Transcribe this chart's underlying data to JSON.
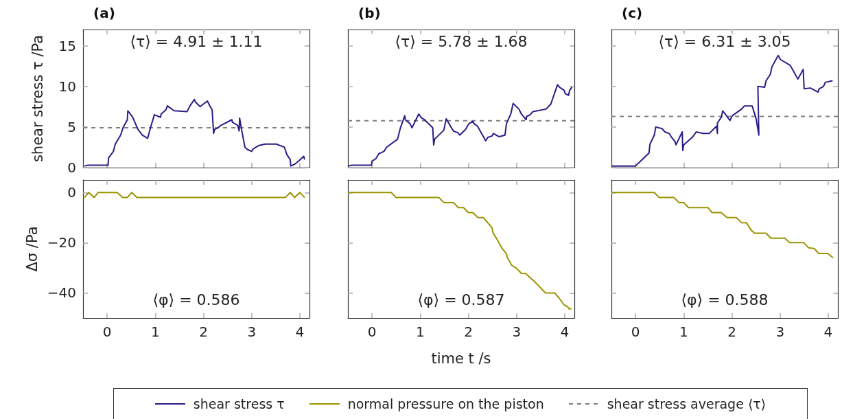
{
  "chart_data": [
    {
      "type": "line",
      "title": "(a)",
      "legend": "bottom",
      "ylabel": "shear stress τ /Pa",
      "xlim": [
        -0.5,
        4.2
      ],
      "ylim": [
        0,
        17
      ],
      "xticks": [
        0,
        1,
        2,
        3,
        4
      ],
      "yticks": [
        0,
        5,
        10,
        15
      ],
      "tick_labels": "y",
      "grid": false,
      "marker": "none",
      "line_style": "solid",
      "annotations": [
        "⟨τ⟩ = 4.91 ± 1.11"
      ],
      "series": [
        {
          "name": "shear stress τ",
          "color": "#2e1a87",
          "x": [
            -0.47,
            -0.4,
            -0.28,
            0.02,
            0.03,
            0.13,
            0.17,
            0.28,
            0.33,
            0.42,
            0.43,
            0.53,
            0.64,
            0.73,
            0.84,
            0.9,
            0.98,
            1.11,
            1.12,
            1.22,
            1.25,
            1.39,
            1.66,
            1.72,
            1.81,
            1.83,
            1.93,
            2.08,
            2.14,
            2.18,
            2.21,
            2.23,
            2.3,
            2.36,
            2.59,
            2.6,
            2.71,
            2.74,
            2.75,
            2.79,
            2.86,
            2.92,
            3.0,
            3.03,
            3.14,
            3.28,
            3.51,
            3.68,
            3.73,
            3.8,
            3.81,
            3.89,
            4.01,
            4.08,
            4.1
          ],
          "values": [
            0.2,
            0.3,
            0.3,
            0.3,
            1.2,
            2.0,
            2.9,
            4.0,
            4.9,
            5.9,
            7.0,
            6.2,
            4.7,
            4.0,
            3.6,
            4.9,
            6.5,
            6.2,
            6.6,
            7.1,
            7.6,
            7.0,
            6.9,
            7.6,
            8.4,
            8.1,
            7.5,
            8.2,
            7.5,
            7.1,
            4.2,
            4.7,
            4.9,
            5.2,
            5.9,
            5.6,
            5.2,
            4.5,
            6.1,
            4.7,
            2.5,
            2.2,
            2.0,
            2.3,
            2.7,
            2.9,
            2.9,
            2.5,
            1.6,
            1.0,
            0.2,
            0.4,
            1.0,
            1.4,
            1.0
          ]
        },
        {
          "name": "shear stress average ⟨τ⟩",
          "color": "#7f7f7f",
          "line_style": "dashed",
          "x": [
            -0.5,
            4.2
          ],
          "values": [
            4.91,
            4.91
          ]
        }
      ]
    },
    {
      "type": "line",
      "title": "(b)",
      "xlim": [
        -0.5,
        4.2
      ],
      "ylim": [
        0,
        17
      ],
      "xticks": [
        0,
        1,
        2,
        3,
        4
      ],
      "yticks": [
        0,
        5,
        10,
        15
      ],
      "tick_labels": false,
      "grid": false,
      "marker": "none",
      "line_style": "solid",
      "annotations": [
        "⟨τ⟩ = 5.78 ± 1.68"
      ],
      "series": [
        {
          "color": "#2e1a87",
          "x": [
            -0.5,
            -0.42,
            -0.01,
            0,
            0.08,
            0.14,
            0.25,
            0.3,
            0.53,
            0.59,
            0.68,
            0.69,
            0.79,
            0.83,
            0.97,
            1.03,
            1.09,
            1.26,
            1.28,
            1.3,
            1.49,
            1.54,
            1.6,
            1.69,
            1.78,
            1.82,
            1.94,
            2.01,
            2.09,
            2.12,
            2.19,
            2.36,
            2.4,
            2.49,
            2.52,
            2.64,
            2.76,
            2.79,
            2.88,
            2.93,
            3.05,
            3.1,
            3.2,
            3.21,
            3.28,
            3.34,
            3.61,
            3.71,
            3.85,
            3.89,
            3.99,
            4.01,
            4.08,
            4.1,
            4.15
          ],
          "values": [
            0.2,
            0.3,
            0.3,
            0.8,
            1.1,
            1.7,
            2.0,
            2.5,
            3.5,
            4.9,
            6.4,
            5.9,
            5.4,
            4.9,
            6.6,
            6.1,
            5.9,
            4.9,
            2.8,
            3.5,
            4.6,
            6.0,
            5.4,
            4.5,
            4.3,
            4.0,
            4.7,
            5.4,
            5.7,
            5.4,
            5.1,
            3.3,
            3.7,
            3.9,
            4.2,
            3.8,
            4.0,
            5.4,
            6.6,
            7.9,
            7.2,
            6.6,
            5.9,
            6.3,
            6.5,
            6.9,
            7.2,
            7.8,
            10.2,
            9.9,
            9.5,
            9.1,
            8.9,
            9.5,
            9.9
          ]
        },
        {
          "color": "#7f7f7f",
          "line_style": "dashed",
          "x": [
            -0.5,
            4.2
          ],
          "values": [
            5.78,
            5.78
          ]
        }
      ]
    },
    {
      "type": "line",
      "title": "(c)",
      "xlim": [
        -0.5,
        4.2
      ],
      "ylim": [
        0,
        17
      ],
      "xticks": [
        0,
        1,
        2,
        3,
        4
      ],
      "yticks": [
        0,
        5,
        10,
        15
      ],
      "tick_labels": false,
      "grid": false,
      "marker": "none",
      "line_style": "solid",
      "annotations": [
        "⟨τ⟩ = 6.31 ± 3.05"
      ],
      "series": [
        {
          "color": "#2e1a87",
          "x": [
            -0.5,
            0,
            0.14,
            0.28,
            0.3,
            0.39,
            0.42,
            0.55,
            0.61,
            0.7,
            0.74,
            0.82,
            0.84,
            0.97,
            0.98,
            1.0,
            1.19,
            1.26,
            1.4,
            1.53,
            1.68,
            1.7,
            1.7,
            1.78,
            1.81,
            1.96,
            2.01,
            2.2,
            2.26,
            2.42,
            2.5,
            2.56,
            2.54,
            2.68,
            2.71,
            2.8,
            2.83,
            2.96,
            3.01,
            3.21,
            3.37,
            3.48,
            3.5,
            3.63,
            3.79,
            3.81,
            3.9,
            3.94,
            4.09
          ],
          "values": [
            0.2,
            0.2,
            1.0,
            1.8,
            2.9,
            4.0,
            5.0,
            4.8,
            4.4,
            4.2,
            3.8,
            3.2,
            2.8,
            4.4,
            2.1,
            2.8,
            3.8,
            4.4,
            4.2,
            4.2,
            5.1,
            4.2,
            5.5,
            6.2,
            7.0,
            5.8,
            6.4,
            7.2,
            7.6,
            7.6,
            6.1,
            4.0,
            10.0,
            9.9,
            10.7,
            11.5,
            12.4,
            13.8,
            13.3,
            12.6,
            10.9,
            12.1,
            9.7,
            9.8,
            9.3,
            9.7,
            10.0,
            10.5,
            10.7
          ]
        },
        {
          "color": "#7f7f7f",
          "line_style": "dashed",
          "x": [
            -0.5,
            4.2
          ],
          "values": [
            6.31,
            6.31
          ]
        }
      ]
    },
    {
      "type": "line",
      "legend": "bottom",
      "ylabel": "Δσ /Pa",
      "xlim": [
        -0.5,
        4.2
      ],
      "ylim": [
        -50,
        5
      ],
      "xticks": [
        0,
        1,
        2,
        3,
        4
      ],
      "yticks": [
        -40,
        -20,
        0
      ],
      "grid": false,
      "marker": "none",
      "line_style": "solid",
      "annotations": [
        "⟨φ⟩ = 0.586"
      ],
      "series": [
        {
          "name": "normal pressure on the piston",
          "color": "#9a9300",
          "x": [
            -0.47,
            -0.38,
            -0.27,
            -0.19,
            0.21,
            0.32,
            0.42,
            0.51,
            0.62,
            3.7,
            3.8,
            3.89,
            4.0,
            4.1
          ],
          "values": [
            -2,
            0,
            -2,
            0,
            0,
            -2,
            -2,
            0,
            -2,
            -2,
            0,
            -2,
            0,
            -2
          ]
        }
      ]
    },
    {
      "type": "line",
      "xlabel": "time t /s",
      "xlim": [
        -0.5,
        4.2
      ],
      "ylim": [
        -50,
        5
      ],
      "xticks": [
        0,
        1,
        2,
        3,
        4
      ],
      "yticks": [
        -40,
        -20,
        0
      ],
      "tick_labels": "x",
      "grid": false,
      "marker": "none",
      "line_style": "solid",
      "annotations": [
        "⟨φ⟩ = 0.587"
      ],
      "series": [
        {
          "color": "#9a9300",
          "x": [
            -0.5,
            0.4,
            0.5,
            1.39,
            1.49,
            1.69,
            1.79,
            1.9,
            2.0,
            2.09,
            2.2,
            2.31,
            2.4,
            2.49,
            2.51,
            2.59,
            2.7,
            2.79,
            2.81,
            2.9,
            3.0,
            3.1,
            3.19,
            3.4,
            3.6,
            3.79,
            3.88,
            3.99,
            4.06,
            4.09,
            4.14
          ],
          "values": [
            0,
            0,
            -2,
            -2,
            -4,
            -4,
            -6,
            -6,
            -8,
            -8,
            -10,
            -10,
            -12,
            -14,
            -16,
            -18.5,
            -22.3,
            -24.3,
            -26,
            -29,
            -30.2,
            -32.2,
            -32.3,
            -36,
            -40,
            -40,
            -42,
            -44.8,
            -45.5,
            -46.4,
            -46.4
          ]
        }
      ]
    },
    {
      "type": "line",
      "xlim": [
        -0.5,
        4.2
      ],
      "ylim": [
        -50,
        5
      ],
      "xticks": [
        0,
        1,
        2,
        3,
        4
      ],
      "yticks": [
        -40,
        -20,
        0
      ],
      "tick_labels": "x",
      "grid": false,
      "marker": "none",
      "line_style": "solid",
      "annotations": [
        "⟨φ⟩ = 0.588"
      ],
      "series": [
        {
          "color": "#9a9300",
          "x": [
            -0.5,
            0.39,
            0.49,
            0.8,
            0.9,
            1.0,
            1.1,
            1.5,
            1.59,
            1.78,
            1.9,
            2.09,
            2.2,
            2.3,
            2.4,
            2.47,
            2.71,
            2.81,
            3.1,
            3.2,
            3.49,
            3.59,
            3.71,
            3.8,
            3.99,
            4.1
          ],
          "values": [
            0,
            0,
            -2,
            -2,
            -4,
            -4,
            -6,
            -6,
            -8,
            -8,
            -10,
            -10,
            -12,
            -12,
            -15,
            -16.2,
            -16.2,
            -18.2,
            -18.2,
            -20,
            -20,
            -22,
            -22.3,
            -24.3,
            -24.3,
            -26
          ]
        }
      ]
    }
  ]
}
